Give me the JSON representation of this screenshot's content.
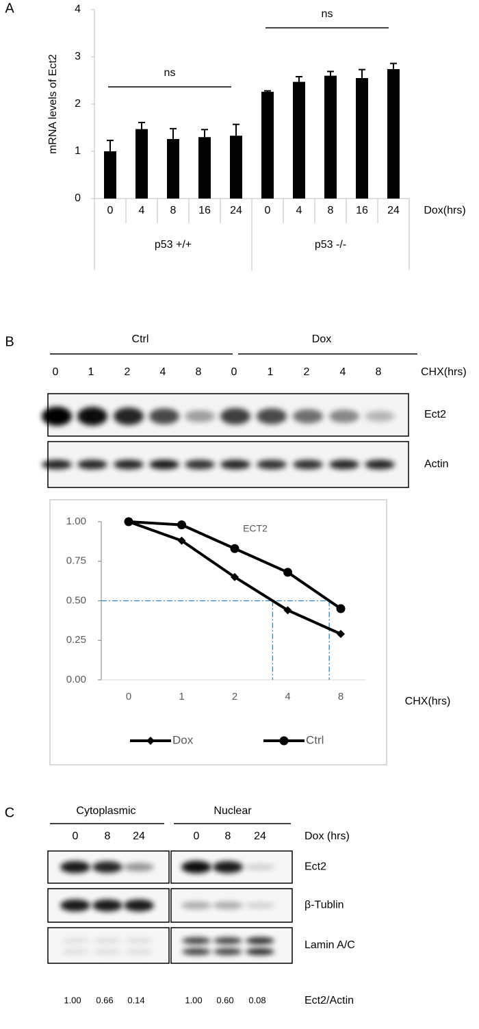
{
  "panel_labels": [
    "A",
    "B",
    "C"
  ],
  "chart_data": [
    {
      "type": "bar",
      "ylabel": "mRNA levels of Ect2",
      "xlabel": "Dox(hrs)",
      "categories": [
        "0",
        "4",
        "8",
        "16",
        "24",
        "0",
        "4",
        "8",
        "16",
        "24"
      ],
      "groups": [
        "p53 +/+",
        "p53 -/-"
      ],
      "values": [
        1.0,
        1.47,
        1.26,
        1.3,
        1.33,
        2.26,
        2.47,
        2.6,
        2.55,
        2.74
      ],
      "errors": [
        0.23,
        0.14,
        0.22,
        0.16,
        0.24,
        0.02,
        0.11,
        0.09,
        0.18,
        0.12
      ],
      "color": "#000000",
      "ylim": [
        0,
        4
      ],
      "yticks": [
        0,
        1,
        2,
        3,
        4
      ],
      "annotations": [
        "ns",
        "ns"
      ]
    },
    {
      "type": "line",
      "title": "ECT2",
      "xlabel": "CHX(hrs)",
      "categories": [
        "0",
        "1",
        "2",
        "4",
        "8"
      ],
      "series": [
        {
          "name": "Dox",
          "color": "#000000",
          "marker": "diamond",
          "values": [
            1.0,
            0.88,
            0.65,
            0.44,
            0.29
          ]
        },
        {
          "name": "Ctrl",
          "color": "#000000",
          "marker": "circle",
          "values": [
            1.0,
            0.98,
            0.83,
            0.68,
            0.45
          ]
        }
      ],
      "ylim": [
        0,
        1
      ],
      "yticks": [
        {
          "value": 0,
          "label": "0.00"
        },
        {
          "value": 0.25,
          "label": "0.25"
        },
        {
          "value": 0.5,
          "label": "0.50"
        },
        {
          "value": 0.75,
          "label": "0.75"
        },
        {
          "value": 1,
          "label": "1.00"
        }
      ],
      "reference_line": 0.5,
      "reference_color": "#2e86c1"
    }
  ],
  "blot_b": {
    "groups": [
      "Ctrl",
      "Dox"
    ],
    "lanes": [
      "0",
      "1",
      "2",
      "4",
      "8",
      "0",
      "1",
      "2",
      "4",
      "8"
    ],
    "lane_label": "CHX(hrs)",
    "rows": [
      "Ect2",
      "Actin"
    ]
  },
  "blot_c": {
    "groups": [
      "Cytoplasmic",
      "Nuclear"
    ],
    "lanes": [
      "0",
      "8",
      "24",
      "0",
      "8",
      "24"
    ],
    "lane_label": "Dox (hrs)",
    "rows": [
      "Ect2",
      "β-Tublin",
      "Lamin A/C"
    ],
    "ratios": [
      "1.00",
      "0.66",
      "0.14",
      "1.00",
      "0.60",
      "0.08"
    ],
    "ratio_label": "Ect2/Actin"
  }
}
